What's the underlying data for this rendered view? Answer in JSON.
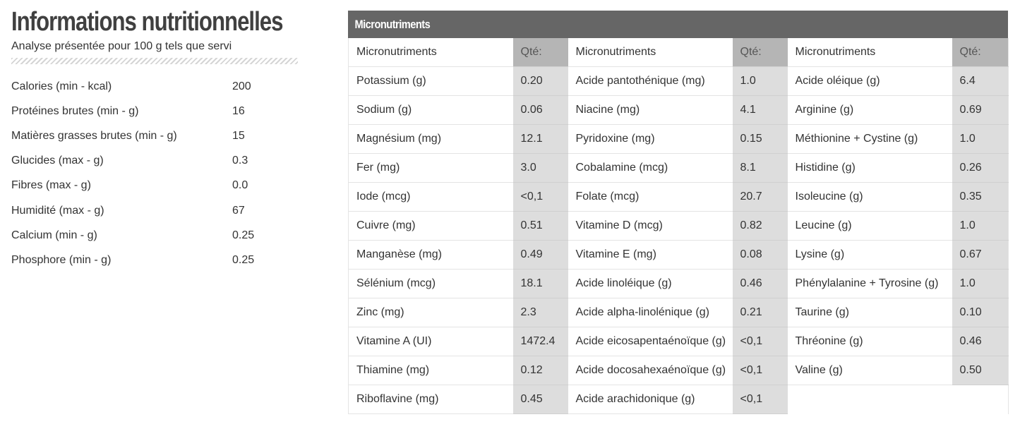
{
  "left": {
    "title": "Informations nutritionnelles",
    "subtitle": "Analyse présentée pour 100 g tels que servi",
    "rows": [
      {
        "name": "Calories (min - kcal)",
        "value": "200"
      },
      {
        "name": "Protéines brutes (min - g)",
        "value": "16"
      },
      {
        "name": "Matières grasses brutes (min - g)",
        "value": "15"
      },
      {
        "name": "Glucides (max - g)",
        "value": "0.3"
      },
      {
        "name": "Fibres (max - g)",
        "value": "0.0"
      },
      {
        "name": "Humidité (max - g)",
        "value": "67"
      },
      {
        "name": "Calcium (min - g)",
        "value": "0.25"
      },
      {
        "name": "Phosphore (min - g)",
        "value": "0.25"
      }
    ]
  },
  "micro": {
    "title": "Micronutriments",
    "col_name_header": "Micronutriments",
    "col_qty_header": "Qté:",
    "columns": [
      [
        {
          "name": "Potassium (g)",
          "value": "0.20"
        },
        {
          "name": "Sodium (g)",
          "value": "0.06"
        },
        {
          "name": "Magnésium (mg)",
          "value": "12.1"
        },
        {
          "name": "Fer (mg)",
          "value": "3.0"
        },
        {
          "name": "Iode (mcg)",
          "value": "<0,1"
        },
        {
          "name": "Cuivre (mg)",
          "value": "0.51"
        },
        {
          "name": "Manganèse (mg)",
          "value": "0.49"
        },
        {
          "name": "Sélénium (mcg)",
          "value": "18.1"
        },
        {
          "name": "Zinc (mg)",
          "value": "2.3"
        },
        {
          "name": "Vitamine A (UI)",
          "value": "1472.4"
        },
        {
          "name": "Thiamine (mg)",
          "value": "0.12"
        },
        {
          "name": "Riboflavine (mg)",
          "value": "0.45"
        }
      ],
      [
        {
          "name": "Acide pantothénique (mg)",
          "value": "1.0"
        },
        {
          "name": "Niacine (mg)",
          "value": "4.1"
        },
        {
          "name": "Pyridoxine (mg)",
          "value": "0.15"
        },
        {
          "name": "Cobalamine (mcg)",
          "value": "8.1"
        },
        {
          "name": "Folate (mcg)",
          "value": "20.7"
        },
        {
          "name": "Vitamine D (mcg)",
          "value": "0.82"
        },
        {
          "name": "Vitamine E (mg)",
          "value": "0.08"
        },
        {
          "name": "Acide linoléique (g)",
          "value": "0.46"
        },
        {
          "name": "Acide alpha-linolénique (g)",
          "value": "0.21"
        },
        {
          "name": "Acide eicosapentaénoïque (g)",
          "value": "<0,1"
        },
        {
          "name": "Acide docosahexaénoïque (g)",
          "value": "<0,1"
        },
        {
          "name": "Acide arachidonique (g)",
          "value": "<0,1"
        }
      ],
      [
        {
          "name": "Acide oléique (g)",
          "value": "6.4"
        },
        {
          "name": "Arginine (g)",
          "value": "0.69"
        },
        {
          "name": "Méthionine + Cystine (g)",
          "value": "1.0"
        },
        {
          "name": "Histidine (g)",
          "value": "0.26"
        },
        {
          "name": "Isoleucine (g)",
          "value": "0.35"
        },
        {
          "name": "Leucine (g)",
          "value": "1.0"
        },
        {
          "name": "Lysine (g)",
          "value": "0.67"
        },
        {
          "name": "Phénylalanine + Tyrosine (g)",
          "value": "1.0"
        },
        {
          "name": "Taurine (g)",
          "value": "0.10"
        },
        {
          "name": "Thréonine (g)",
          "value": "0.46"
        },
        {
          "name": "Valine (g)",
          "value": "0.50"
        }
      ]
    ]
  }
}
